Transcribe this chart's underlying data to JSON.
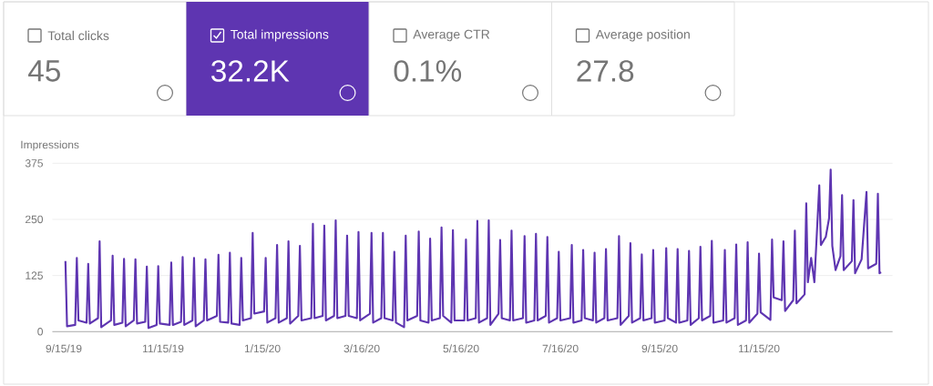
{
  "chart_data": {
    "type": "line",
    "ylabel": "Impressions",
    "color": "#5e35b1",
    "grid": "y",
    "annotations": [
      "Total clicks",
      "45",
      "Total impressions",
      "32.2K",
      "Average CTR",
      "0.1%",
      "Average position",
      "27.8"
    ],
    "xlim": [
      "2019-09-08",
      "2021-02-05"
    ],
    "ylim": [
      0,
      375
    ],
    "yticks": [
      0,
      125,
      250,
      375
    ],
    "xticks": [
      {
        "value": "2019-09-15",
        "label": "9/15/19"
      },
      {
        "value": "2019-11-15",
        "label": "11/15/19"
      },
      {
        "value": "2020-01-15",
        "label": "1/15/20"
      },
      {
        "value": "2020-03-16",
        "label": "3/16/20"
      },
      {
        "value": "2020-05-16",
        "label": "5/16/20"
      },
      {
        "value": "2020-07-16",
        "label": "7/16/20"
      },
      {
        "value": "2020-09-15",
        "label": "9/15/20"
      },
      {
        "value": "2020-11-15",
        "label": "11/15/20"
      }
    ],
    "x": [
      "2019-09-16",
      "2019-09-17",
      "2019-09-22",
      "2019-09-23",
      "2019-09-24",
      "2019-09-29",
      "2019-09-30",
      "2019-10-01",
      "2019-10-06",
      "2019-10-07",
      "2019-10-08",
      "2019-10-14",
      "2019-10-15",
      "2019-10-16",
      "2019-10-21",
      "2019-10-22",
      "2019-10-23",
      "2019-10-28",
      "2019-10-29",
      "2019-10-30",
      "2019-11-04",
      "2019-11-05",
      "2019-11-06",
      "2019-11-11",
      "2019-11-12",
      "2019-11-13",
      "2019-11-19",
      "2019-11-20",
      "2019-11-21",
      "2019-11-26",
      "2019-11-27",
      "2019-11-28",
      "2019-12-03",
      "2019-12-04",
      "2019-12-05",
      "2019-12-10",
      "2019-12-11",
      "2019-12-12",
      "2019-12-18",
      "2019-12-19",
      "2019-12-20",
      "2019-12-25",
      "2019-12-26",
      "2019-12-27",
      "2020-01-01",
      "2020-01-02",
      "2020-01-03",
      "2020-01-08",
      "2020-01-09",
      "2020-01-10",
      "2020-01-16",
      "2020-01-17",
      "2020-01-18",
      "2020-01-23",
      "2020-01-24",
      "2020-01-25",
      "2020-01-30",
      "2020-01-31",
      "2020-02-01",
      "2020-02-06",
      "2020-02-07",
      "2020-02-08",
      "2020-02-14",
      "2020-02-15",
      "2020-02-16",
      "2020-02-21",
      "2020-02-22",
      "2020-02-23",
      "2020-02-28",
      "2020-02-29",
      "2020-03-01",
      "2020-03-06",
      "2020-03-07",
      "2020-03-08",
      "2020-03-13",
      "2020-03-14",
      "2020-03-15",
      "2020-03-21",
      "2020-03-22",
      "2020-03-23",
      "2020-03-28",
      "2020-03-29",
      "2020-03-30",
      "2020-04-04",
      "2020-04-05",
      "2020-04-06",
      "2020-04-11",
      "2020-04-12",
      "2020-04-13",
      "2020-04-19",
      "2020-04-20",
      "2020-04-21",
      "2020-04-26",
      "2020-04-27",
      "2020-04-28",
      "2020-05-03",
      "2020-05-04",
      "2020-05-05",
      "2020-05-10",
      "2020-05-11",
      "2020-05-12",
      "2020-05-18",
      "2020-05-19",
      "2020-05-20",
      "2020-05-25",
      "2020-05-26",
      "2020-05-27",
      "2020-06-01",
      "2020-06-02",
      "2020-06-03",
      "2020-06-08",
      "2020-06-09",
      "2020-06-10",
      "2020-06-15",
      "2020-06-16",
      "2020-06-17",
      "2020-06-23",
      "2020-06-24",
      "2020-06-25",
      "2020-06-30",
      "2020-07-01",
      "2020-07-02",
      "2020-07-07",
      "2020-07-08",
      "2020-07-09",
      "2020-07-14",
      "2020-07-15",
      "2020-07-16",
      "2020-07-22",
      "2020-07-23",
      "2020-07-24",
      "2020-07-29",
      "2020-07-30",
      "2020-07-31",
      "2020-08-05",
      "2020-08-06",
      "2020-08-07",
      "2020-08-12",
      "2020-08-13",
      "2020-08-14",
      "2020-08-20",
      "2020-08-21",
      "2020-08-22",
      "2020-08-27",
      "2020-08-28",
      "2020-08-29",
      "2020-09-03",
      "2020-09-04",
      "2020-09-05",
      "2020-09-10",
      "2020-09-11",
      "2020-09-12",
      "2020-09-18",
      "2020-09-19",
      "2020-09-20",
      "2020-09-25",
      "2020-09-26",
      "2020-09-27",
      "2020-10-02",
      "2020-10-03",
      "2020-10-04",
      "2020-10-09",
      "2020-10-10",
      "2020-10-11",
      "2020-10-16",
      "2020-10-17",
      "2020-10-18",
      "2020-10-24",
      "2020-10-25",
      "2020-10-26",
      "2020-10-31",
      "2020-11-01",
      "2020-11-02",
      "2020-11-07",
      "2020-11-08",
      "2020-11-09",
      "2020-11-14",
      "2020-11-15",
      "2020-11-16",
      "2020-11-22",
      "2020-11-23",
      "2020-11-24",
      "2020-11-29",
      "2020-11-30",
      "2020-12-01",
      "2020-12-06",
      "2020-12-07",
      "2020-12-08",
      "2020-12-13",
      "2020-12-14",
      "2020-12-15",
      "2020-12-17",
      "2020-12-19",
      "2020-12-22",
      "2020-12-23",
      "2020-12-26",
      "2020-12-28",
      "2020-12-29",
      "2020-12-30",
      "2021-01-01",
      "2021-01-04",
      "2021-01-05",
      "2021-01-06",
      "2021-01-11",
      "2021-01-12",
      "2021-01-13",
      "2021-01-17",
      "2021-01-20",
      "2021-01-21",
      "2021-01-26",
      "2021-01-27",
      "2021-01-28",
      "2021-01-29"
    ],
    "values": [
      157,
      12,
      15,
      164,
      25,
      20,
      151,
      18,
      30,
      201,
      10,
      25,
      169,
      15,
      20,
      162,
      12,
      25,
      161,
      18,
      22,
      145,
      8,
      15,
      146,
      18,
      15,
      154,
      15,
      22,
      166,
      15,
      25,
      164,
      12,
      25,
      161,
      25,
      35,
      171,
      22,
      20,
      176,
      18,
      15,
      164,
      25,
      30,
      220,
      40,
      45,
      164,
      20,
      30,
      193,
      20,
      30,
      201,
      18,
      35,
      191,
      25,
      30,
      240,
      30,
      35,
      236,
      25,
      35,
      248,
      30,
      35,
      214,
      35,
      30,
      222,
      25,
      40,
      220,
      20,
      30,
      220,
      30,
      25,
      178,
      20,
      10,
      214,
      25,
      35,
      223,
      25,
      20,
      207,
      25,
      30,
      232,
      35,
      20,
      226,
      25,
      25,
      205,
      25,
      30,
      247,
      20,
      30,
      248,
      15,
      40,
      204,
      30,
      25,
      225,
      25,
      30,
      213,
      20,
      25,
      218,
      25,
      35,
      211,
      20,
      30,
      178,
      25,
      30,
      193,
      20,
      25,
      182,
      30,
      25,
      176,
      20,
      30,
      184,
      25,
      30,
      213,
      15,
      35,
      197,
      20,
      30,
      172,
      25,
      30,
      182,
      20,
      25,
      186,
      30,
      20,
      184,
      20,
      25,
      180,
      15,
      30,
      189,
      25,
      35,
      202,
      20,
      25,
      182,
      20,
      30,
      194,
      15,
      25,
      199,
      20,
      40,
      174,
      43,
      26,
      205,
      76,
      70,
      201,
      46,
      70,
      225,
      63,
      83,
      286,
      110,
      164,
      110,
      326,
      193,
      211,
      252,
      361,
      191,
      137,
      168,
      304,
      137,
      157,
      293,
      130,
      161,
      311,
      141,
      151,
      307,
      130,
      132
    ]
  }
}
